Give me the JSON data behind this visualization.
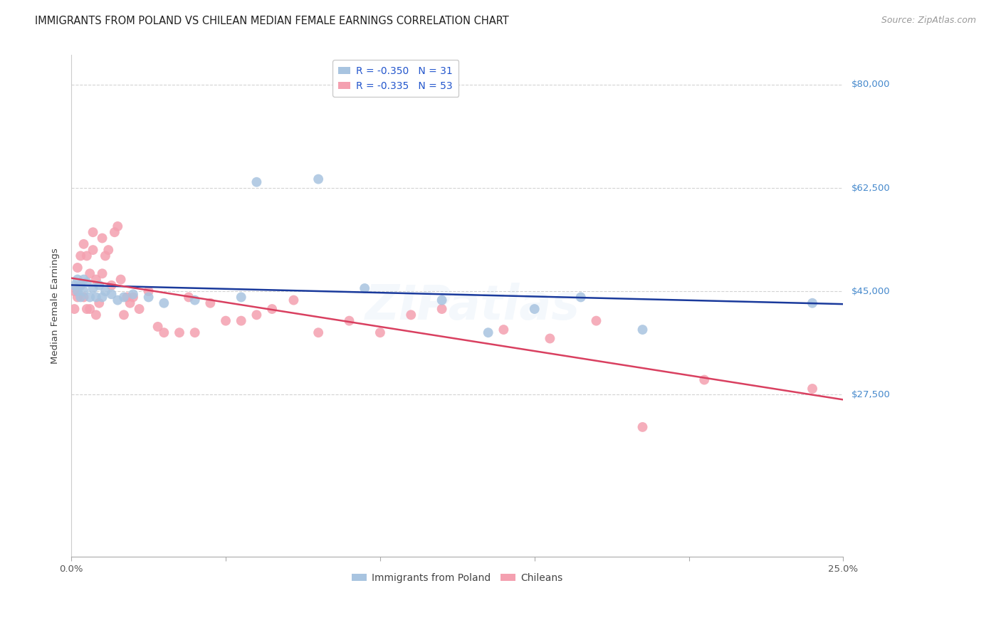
{
  "title": "IMMIGRANTS FROM POLAND VS CHILEAN MEDIAN FEMALE EARNINGS CORRELATION CHART",
  "source": "Source: ZipAtlas.com",
  "ylabel": "Median Female Earnings",
  "yticks": [
    27500,
    45000,
    62500,
    80000
  ],
  "ytick_labels": [
    "$27,500",
    "$45,000",
    "$62,500",
    "$80,000"
  ],
  "xlim": [
    0.0,
    0.25
  ],
  "ylim": [
    0,
    85000
  ],
  "poland_R": -0.35,
  "poland_N": 31,
  "chilean_R": -0.335,
  "chilean_N": 53,
  "poland_color": "#a8c4e0",
  "chilean_color": "#f4a0b0",
  "poland_line_color": "#1a3a9c",
  "chilean_line_color": "#d94060",
  "legend_label_poland": "Immigrants from Poland",
  "legend_label_chilean": "Chileans",
  "watermark": "ZIPatlas",
  "background_color": "#ffffff",
  "poland_x": [
    0.001,
    0.002,
    0.002,
    0.003,
    0.003,
    0.004,
    0.004,
    0.005,
    0.006,
    0.007,
    0.008,
    0.009,
    0.01,
    0.011,
    0.013,
    0.015,
    0.017,
    0.02,
    0.025,
    0.03,
    0.04,
    0.055,
    0.06,
    0.08,
    0.095,
    0.12,
    0.135,
    0.15,
    0.165,
    0.185,
    0.24
  ],
  "poland_y": [
    46000,
    47000,
    45000,
    44000,
    46000,
    47000,
    45000,
    46500,
    44000,
    45500,
    44000,
    46000,
    44000,
    45000,
    44500,
    43500,
    44000,
    44500,
    44000,
    43000,
    43500,
    44000,
    63500,
    64000,
    45500,
    43500,
    38000,
    42000,
    44000,
    38500,
    43000
  ],
  "chilean_x": [
    0.001,
    0.001,
    0.002,
    0.002,
    0.003,
    0.003,
    0.004,
    0.004,
    0.005,
    0.005,
    0.006,
    0.006,
    0.007,
    0.007,
    0.008,
    0.008,
    0.009,
    0.01,
    0.01,
    0.011,
    0.012,
    0.013,
    0.014,
    0.015,
    0.016,
    0.017,
    0.018,
    0.019,
    0.02,
    0.022,
    0.025,
    0.028,
    0.03,
    0.035,
    0.038,
    0.04,
    0.045,
    0.05,
    0.055,
    0.06,
    0.065,
    0.072,
    0.08,
    0.09,
    0.1,
    0.11,
    0.12,
    0.14,
    0.155,
    0.17,
    0.185,
    0.205,
    0.24
  ],
  "chilean_y": [
    45000,
    42000,
    49000,
    44000,
    51000,
    46000,
    53000,
    44000,
    51000,
    42000,
    48000,
    42000,
    55000,
    52000,
    47000,
    41000,
    43000,
    54000,
    48000,
    51000,
    52000,
    46000,
    55000,
    56000,
    47000,
    41000,
    44000,
    43000,
    44000,
    42000,
    45000,
    39000,
    38000,
    38000,
    44000,
    38000,
    43000,
    40000,
    40000,
    41000,
    42000,
    43500,
    38000,
    40000,
    38000,
    41000,
    42000,
    38500,
    37000,
    40000,
    22000,
    30000,
    28500
  ],
  "title_fontsize": 10.5,
  "axis_label_fontsize": 9.5,
  "tick_fontsize": 9.5,
  "source_fontsize": 9,
  "legend_fontsize": 10,
  "watermark_fontsize": 48,
  "watermark_alpha": 0.13,
  "grid_color": "#c8c8c8",
  "grid_linestyle": "--",
  "grid_alpha": 0.8,
  "ytick_label_color": "#4488cc"
}
